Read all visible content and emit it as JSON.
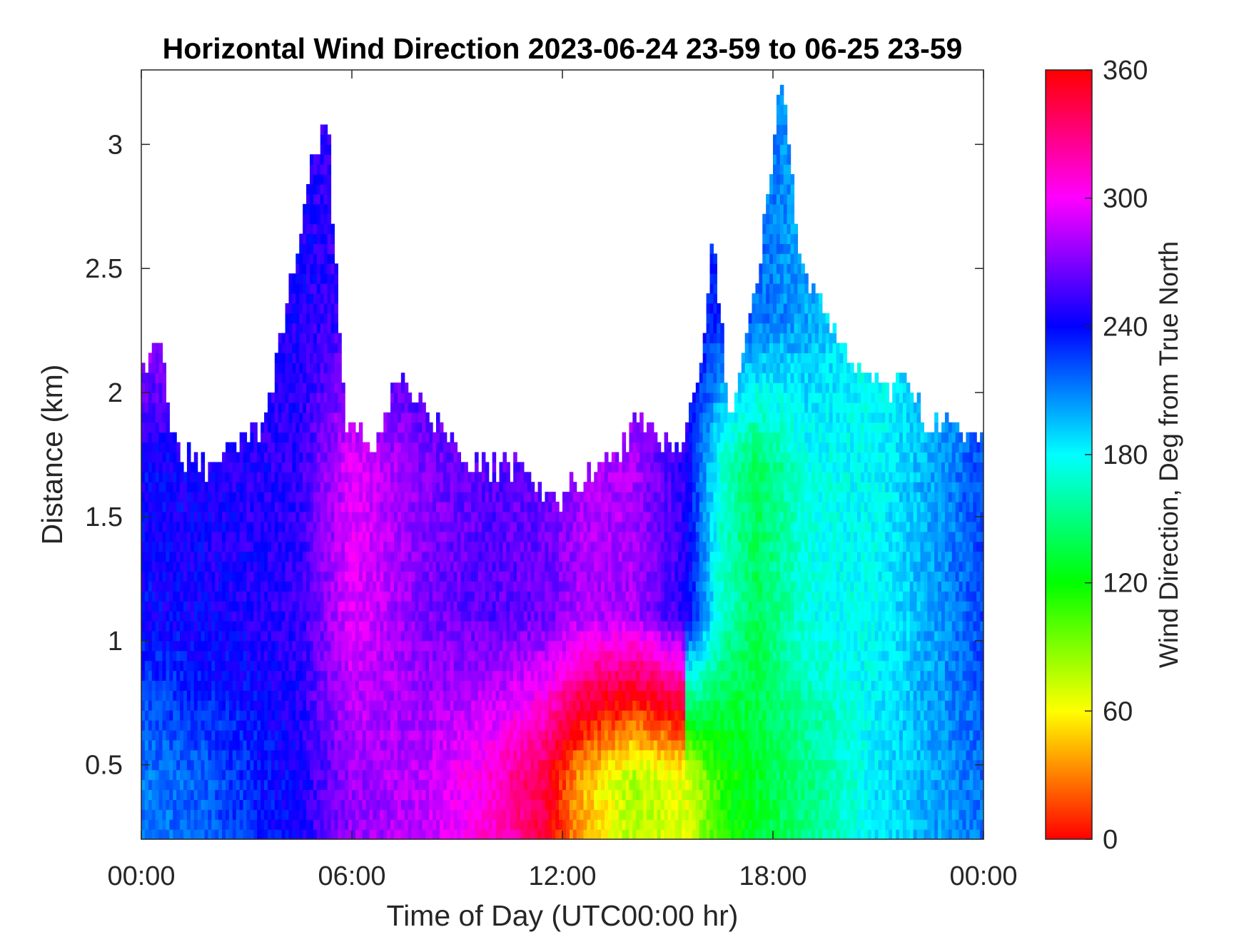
{
  "chart_data": {
    "type": "heatmap",
    "title": "Horizontal Wind Direction 2023-06-24 23-59 to 06-25 23-59",
    "xlabel": "Time of Day (UTC00:00 hr)",
    "ylabel": "Distance (km)",
    "colorbar_label": "Wind Direction, Deg from True North",
    "x_ticks": [
      "00:00",
      "06:00",
      "12:00",
      "18:00",
      "00:00"
    ],
    "x_tick_hours": [
      0,
      6,
      12,
      18,
      24
    ],
    "y_ticks": [
      "0.5",
      "1",
      "1.5",
      "2",
      "2.5",
      "3"
    ],
    "y_tick_values": [
      0.5,
      1,
      1.5,
      2,
      2.5,
      3
    ],
    "colorbar_ticks": [
      "0",
      "60",
      "120",
      "180",
      "240",
      "300",
      "360"
    ],
    "colorbar_values": [
      0,
      60,
      120,
      180,
      240,
      300,
      360
    ],
    "xlim_hours": [
      0,
      24
    ],
    "ylim_km": [
      0.2,
      3.3
    ],
    "clim_deg": [
      0,
      360
    ],
    "colormap": "hsv (red at 0 through yellow, green, cyan, blue, magenta to red at 360)",
    "grid": false,
    "x_units": "hours UTC",
    "y_units": "km",
    "value_units": "degrees from true north",
    "signal_top_km": [
      [
        0.0,
        2.1
      ],
      [
        0.5,
        2.2
      ],
      [
        1.0,
        1.75
      ],
      [
        2.0,
        1.7
      ],
      [
        2.5,
        1.8
      ],
      [
        3.5,
        1.85
      ],
      [
        4.2,
        2.4
      ],
      [
        4.8,
        2.9
      ],
      [
        5.3,
        3.1
      ],
      [
        5.8,
        1.9
      ],
      [
        6.5,
        1.8
      ],
      [
        7.0,
        1.9
      ],
      [
        7.3,
        2.1
      ],
      [
        8.0,
        1.95
      ],
      [
        9.0,
        1.75
      ],
      [
        10.0,
        1.7
      ],
      [
        11.0,
        1.7
      ],
      [
        11.8,
        1.55
      ],
      [
        12.5,
        1.65
      ],
      [
        13.5,
        1.75
      ],
      [
        14.2,
        1.9
      ],
      [
        15.0,
        1.8
      ],
      [
        15.5,
        1.8
      ],
      [
        16.0,
        2.2
      ],
      [
        16.3,
        2.6
      ],
      [
        16.8,
        1.9
      ],
      [
        17.5,
        2.4
      ],
      [
        18.3,
        3.3
      ],
      [
        18.8,
        2.5
      ],
      [
        19.5,
        2.3
      ],
      [
        20.3,
        2.1
      ],
      [
        21.2,
        2.0
      ],
      [
        21.8,
        2.05
      ],
      [
        22.3,
        1.9
      ],
      [
        23.0,
        1.85
      ],
      [
        24.0,
        1.8
      ]
    ],
    "direction_by_time_deg": [
      {
        "hour": 0.0,
        "low_km": 210,
        "mid_km": 240,
        "high_km": 285
      },
      {
        "hour": 2.0,
        "low_km": 220,
        "mid_km": 245,
        "high_km": 270
      },
      {
        "hour": 4.5,
        "low_km": 245,
        "mid_km": 250,
        "high_km": 245
      },
      {
        "hour": 6.0,
        "low_km": 275,
        "mid_km": 295,
        "high_km": 255
      },
      {
        "hour": 8.0,
        "low_km": 285,
        "mid_km": 270,
        "high_km": 250
      },
      {
        "hour": 10.0,
        "low_km": 310,
        "mid_km": 260,
        "high_km": 250
      },
      {
        "hour": 11.5,
        "low_km": 345,
        "mid_km": 265,
        "high_km": 260
      },
      {
        "hour": 12.5,
        "low_km": 40,
        "mid_km": 280,
        "high_km": 265
      },
      {
        "hour": 14.0,
        "low_km": 80,
        "mid_km": 280,
        "high_km": 265
      },
      {
        "hour": 15.5,
        "low_km": 65,
        "mid_km": 250,
        "high_km": 245
      },
      {
        "hour": 16.5,
        "low_km": 110,
        "mid_km": 170,
        "high_km": 230
      },
      {
        "hour": 17.5,
        "low_km": 130,
        "mid_km": 140,
        "high_km": 215
      },
      {
        "hour": 19.0,
        "low_km": 150,
        "mid_km": 175,
        "high_km": 200
      },
      {
        "hour": 21.0,
        "low_km": 185,
        "mid_km": 180,
        "high_km": 175
      },
      {
        "hour": 22.5,
        "low_km": 200,
        "mid_km": 200,
        "high_km": 190
      },
      {
        "hour": 24.0,
        "low_km": 215,
        "mid_km": 225,
        "high_km": 205
      }
    ]
  }
}
